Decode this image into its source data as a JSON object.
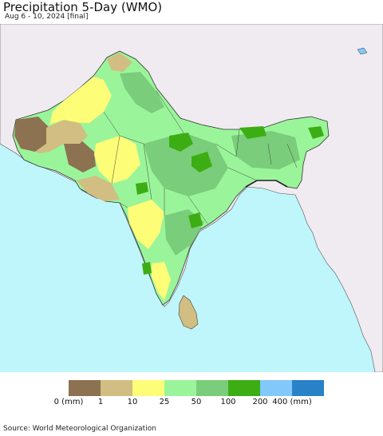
{
  "title": "Precipitation 5-Day (WMO)",
  "subtitle": "Aug 6 - 10, 2024 [final]",
  "source": "Source: World Meteorological Organization",
  "legend": {
    "labels": [
      "0 (mm)",
      "1",
      "10",
      "25",
      "50",
      "100",
      "200",
      "400 (mm)"
    ],
    "colors": [
      "#8c7250",
      "#d2bd82",
      "#fdfd78",
      "#9af59a",
      "#7acd7a",
      "#3cae14",
      "#82c8fa",
      "#2882c8"
    ]
  },
  "colors": {
    "ocean": "#bff6fb",
    "outside_land": "#efebf0",
    "borders": "#333333"
  }
}
